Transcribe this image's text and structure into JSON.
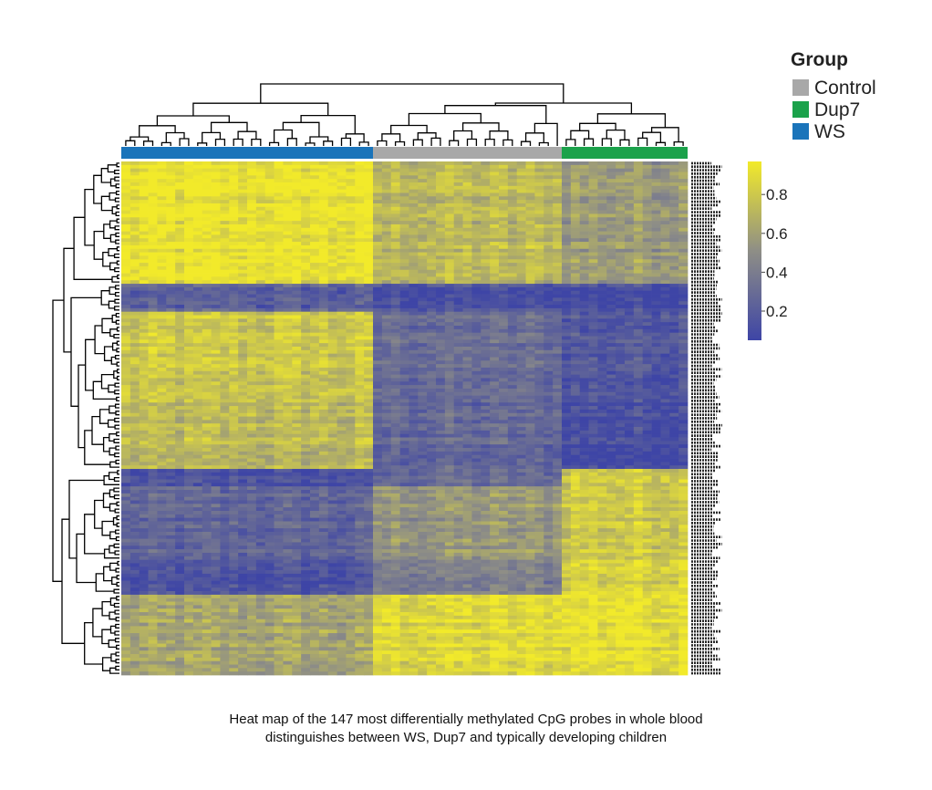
{
  "chart_data": {
    "type": "heatmap",
    "title": "",
    "xlabel": "",
    "ylabel": "",
    "legend": {
      "title": "Group",
      "placement": "top-right",
      "entries": [
        {
          "name": "Control",
          "color": "#A8A8A8"
        },
        {
          "name": "Dup7",
          "color": "#1BA24B"
        },
        {
          "name": "WS",
          "color": "#1A74BA"
        }
      ]
    },
    "colorbar": {
      "ticks": [
        "0.8",
        "0.6",
        "0.4",
        "0.2"
      ],
      "tick_values": [
        0.8,
        0.6,
        0.4,
        0.2
      ],
      "range": [
        0.05,
        0.97
      ],
      "low_color": "#3E45A6",
      "mid_color": "#8E8E86",
      "high_color": "#F2EA2A"
    },
    "column_groups": [
      {
        "name": "WS",
        "n_samples": 28
      },
      {
        "name": "Control",
        "n_samples": 21
      },
      {
        "name": "Dup7",
        "n_samples": 14
      }
    ],
    "n_probes": 147,
    "row_clusters": [
      {
        "rows": 35,
        "mean": {
          "WS": 0.93,
          "Control": 0.72,
          "Dup7": 0.58
        }
      },
      {
        "rows": 8,
        "mean": {
          "WS": 0.22,
          "Control": 0.12,
          "Dup7": 0.1
        }
      },
      {
        "rows": 26,
        "mean": {
          "WS": 0.78,
          "Control": 0.3,
          "Dup7": 0.18
        }
      },
      {
        "rows": 19,
        "mean": {
          "WS": 0.72,
          "Control": 0.28,
          "Dup7": 0.12
        }
      },
      {
        "rows": 5,
        "mean": {
          "WS": 0.12,
          "Control": 0.3,
          "Dup7": 0.82
        }
      },
      {
        "rows": 21,
        "mean": {
          "WS": 0.25,
          "Control": 0.55,
          "Dup7": 0.8
        }
      },
      {
        "rows": 10,
        "mean": {
          "WS": 0.12,
          "Control": 0.4,
          "Dup7": 0.85
        }
      },
      {
        "rows": 23,
        "mean": {
          "WS": 0.62,
          "Control": 0.88,
          "Dup7": 0.93
        }
      }
    ]
  },
  "caption": {
    "line1": "Heat map of the 147 most differentially methylated CpG probes in whole blood",
    "line2": "distinguishes between WS, Dup7 and typically developing children"
  }
}
